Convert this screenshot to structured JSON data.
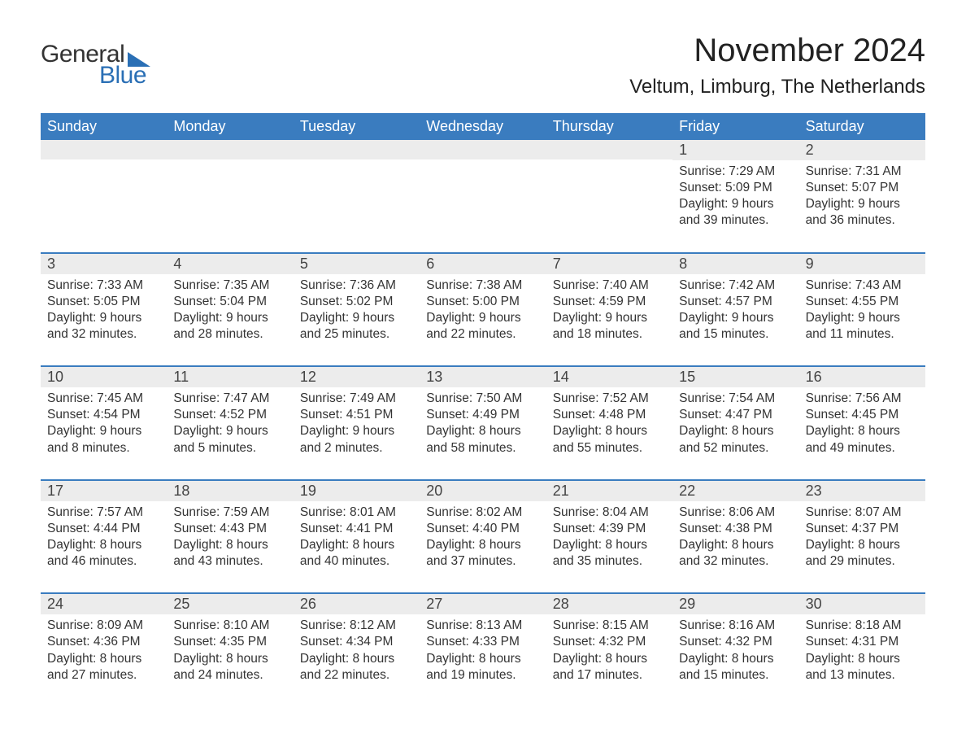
{
  "brand": {
    "word1": "General",
    "word2": "Blue",
    "brand_color": "#2a6fb5"
  },
  "title": "November 2024",
  "location": "Veltum, Limburg, The Netherlands",
  "colors": {
    "header_bg": "#3a7cbf",
    "header_text": "#ffffff",
    "row_border": "#3a7cbf",
    "daynum_bg": "#ececec",
    "body_text": "#333333",
    "page_bg": "#ffffff"
  },
  "layout": {
    "columns": 7,
    "rows": 5,
    "first_day_column_index": 5
  },
  "weekdays": [
    "Sunday",
    "Monday",
    "Tuesday",
    "Wednesday",
    "Thursday",
    "Friday",
    "Saturday"
  ],
  "label_sunrise": "Sunrise: ",
  "label_sunset": "Sunset: ",
  "label_daylight": "Daylight: ",
  "days": [
    {
      "n": 1,
      "sunrise": "7:29 AM",
      "sunset": "5:09 PM",
      "daylight": "9 hours and 39 minutes."
    },
    {
      "n": 2,
      "sunrise": "7:31 AM",
      "sunset": "5:07 PM",
      "daylight": "9 hours and 36 minutes."
    },
    {
      "n": 3,
      "sunrise": "7:33 AM",
      "sunset": "5:05 PM",
      "daylight": "9 hours and 32 minutes."
    },
    {
      "n": 4,
      "sunrise": "7:35 AM",
      "sunset": "5:04 PM",
      "daylight": "9 hours and 28 minutes."
    },
    {
      "n": 5,
      "sunrise": "7:36 AM",
      "sunset": "5:02 PM",
      "daylight": "9 hours and 25 minutes."
    },
    {
      "n": 6,
      "sunrise": "7:38 AM",
      "sunset": "5:00 PM",
      "daylight": "9 hours and 22 minutes."
    },
    {
      "n": 7,
      "sunrise": "7:40 AM",
      "sunset": "4:59 PM",
      "daylight": "9 hours and 18 minutes."
    },
    {
      "n": 8,
      "sunrise": "7:42 AM",
      "sunset": "4:57 PM",
      "daylight": "9 hours and 15 minutes."
    },
    {
      "n": 9,
      "sunrise": "7:43 AM",
      "sunset": "4:55 PM",
      "daylight": "9 hours and 11 minutes."
    },
    {
      "n": 10,
      "sunrise": "7:45 AM",
      "sunset": "4:54 PM",
      "daylight": "9 hours and 8 minutes."
    },
    {
      "n": 11,
      "sunrise": "7:47 AM",
      "sunset": "4:52 PM",
      "daylight": "9 hours and 5 minutes."
    },
    {
      "n": 12,
      "sunrise": "7:49 AM",
      "sunset": "4:51 PM",
      "daylight": "9 hours and 2 minutes."
    },
    {
      "n": 13,
      "sunrise": "7:50 AM",
      "sunset": "4:49 PM",
      "daylight": "8 hours and 58 minutes."
    },
    {
      "n": 14,
      "sunrise": "7:52 AM",
      "sunset": "4:48 PM",
      "daylight": "8 hours and 55 minutes."
    },
    {
      "n": 15,
      "sunrise": "7:54 AM",
      "sunset": "4:47 PM",
      "daylight": "8 hours and 52 minutes."
    },
    {
      "n": 16,
      "sunrise": "7:56 AM",
      "sunset": "4:45 PM",
      "daylight": "8 hours and 49 minutes."
    },
    {
      "n": 17,
      "sunrise": "7:57 AM",
      "sunset": "4:44 PM",
      "daylight": "8 hours and 46 minutes."
    },
    {
      "n": 18,
      "sunrise": "7:59 AM",
      "sunset": "4:43 PM",
      "daylight": "8 hours and 43 minutes."
    },
    {
      "n": 19,
      "sunrise": "8:01 AM",
      "sunset": "4:41 PM",
      "daylight": "8 hours and 40 minutes."
    },
    {
      "n": 20,
      "sunrise": "8:02 AM",
      "sunset": "4:40 PM",
      "daylight": "8 hours and 37 minutes."
    },
    {
      "n": 21,
      "sunrise": "8:04 AM",
      "sunset": "4:39 PM",
      "daylight": "8 hours and 35 minutes."
    },
    {
      "n": 22,
      "sunrise": "8:06 AM",
      "sunset": "4:38 PM",
      "daylight": "8 hours and 32 minutes."
    },
    {
      "n": 23,
      "sunrise": "8:07 AM",
      "sunset": "4:37 PM",
      "daylight": "8 hours and 29 minutes."
    },
    {
      "n": 24,
      "sunrise": "8:09 AM",
      "sunset": "4:36 PM",
      "daylight": "8 hours and 27 minutes."
    },
    {
      "n": 25,
      "sunrise": "8:10 AM",
      "sunset": "4:35 PM",
      "daylight": "8 hours and 24 minutes."
    },
    {
      "n": 26,
      "sunrise": "8:12 AM",
      "sunset": "4:34 PM",
      "daylight": "8 hours and 22 minutes."
    },
    {
      "n": 27,
      "sunrise": "8:13 AM",
      "sunset": "4:33 PM",
      "daylight": "8 hours and 19 minutes."
    },
    {
      "n": 28,
      "sunrise": "8:15 AM",
      "sunset": "4:32 PM",
      "daylight": "8 hours and 17 minutes."
    },
    {
      "n": 29,
      "sunrise": "8:16 AM",
      "sunset": "4:32 PM",
      "daylight": "8 hours and 15 minutes."
    },
    {
      "n": 30,
      "sunrise": "8:18 AM",
      "sunset": "4:31 PM",
      "daylight": "8 hours and 13 minutes."
    }
  ]
}
